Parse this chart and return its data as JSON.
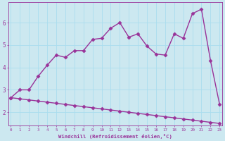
{
  "xlabel": "Windchill (Refroidissement éolien,°C)",
  "bg_color": "#cce8f0",
  "line_color": "#993399",
  "grid_color": "#aaddee",
  "x_ticks": [
    0,
    1,
    2,
    3,
    4,
    5,
    6,
    7,
    8,
    9,
    10,
    11,
    12,
    13,
    14,
    15,
    16,
    17,
    18,
    19,
    20,
    21,
    22,
    23
  ],
  "y_ticks": [
    2,
    3,
    4,
    5,
    6
  ],
  "ylim": [
    1.4,
    6.9
  ],
  "xlim": [
    -0.3,
    23.3
  ],
  "line1_x": [
    0,
    1,
    2,
    3,
    4,
    5,
    6,
    7,
    8,
    9,
    10,
    11,
    12,
    13,
    14,
    15,
    16,
    17,
    18,
    19,
    20,
    21,
    22,
    23
  ],
  "line1_y": [
    2.65,
    3.0,
    3.0,
    3.6,
    4.1,
    4.55,
    4.45,
    4.75,
    4.75,
    5.25,
    5.3,
    5.75,
    6.0,
    5.35,
    5.5,
    4.95,
    4.6,
    4.55,
    5.5,
    5.3,
    6.4,
    6.6,
    4.3,
    2.35
  ],
  "line2_x": [
    0,
    1,
    2,
    3,
    4,
    5,
    6,
    7,
    8,
    9,
    10,
    11,
    12,
    13,
    14,
    15,
    16,
    17,
    18,
    19,
    20,
    21,
    22,
    23
  ],
  "line2_y": [
    2.65,
    2.6,
    2.55,
    2.5,
    2.45,
    2.4,
    2.35,
    2.3,
    2.25,
    2.2,
    2.15,
    2.1,
    2.05,
    2.0,
    1.95,
    1.9,
    1.85,
    1.8,
    1.75,
    1.7,
    1.65,
    1.6,
    1.55,
    1.5
  ],
  "marker": "D",
  "markersize": 2.5,
  "linewidth": 1.0
}
